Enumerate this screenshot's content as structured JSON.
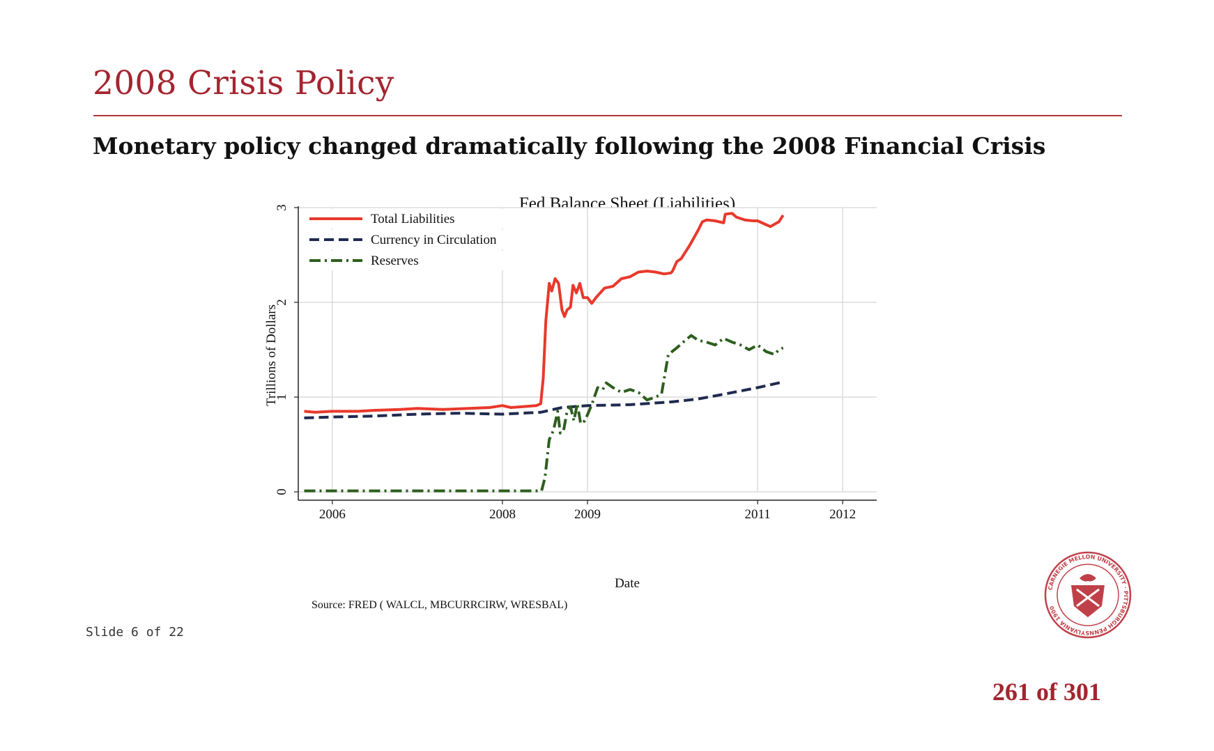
{
  "slide": {
    "title": "2008 Crisis Policy",
    "subtitle": "Monetary policy changed dramatically following the 2008 Financial Crisis",
    "counter": "Slide 6 of 22",
    "page_count": "261 of 301",
    "seal_text": "CARNEGIE MELLON UNIVERSITY · PITTSBURGH PENNSYLVANIA 1900",
    "accent_color": "#a3252f"
  },
  "chart_data": {
    "type": "line",
    "title": "Fed Balance Sheet (Liabilities)",
    "xlabel": "Date",
    "ylabel": "Trillions of Dollars",
    "source": "Source: FRED ( WALCL, MBCURRCIRW, WRESBAL)",
    "x_ticks": [
      {
        "value": 2006.0,
        "label": "2006"
      },
      {
        "value": 2008.0,
        "label": "2008"
      },
      {
        "value": 2009.0,
        "label": "2009"
      },
      {
        "value": 2011.0,
        "label": "2011"
      },
      {
        "value": 2012.0,
        "label": "2012"
      }
    ],
    "y_ticks": [
      0,
      1,
      2,
      3
    ],
    "xlim": [
      2005.6,
      2012.4
    ],
    "ylim": [
      0,
      3
    ],
    "grid": true,
    "legend_position": "top-left",
    "series": [
      {
        "name": "Total Liabilities",
        "color": "#e8392b",
        "style": "solid",
        "points": [
          [
            2005.67,
            0.85
          ],
          [
            2005.8,
            0.84
          ],
          [
            2006.0,
            0.85
          ],
          [
            2006.3,
            0.85
          ],
          [
            2006.5,
            0.86
          ],
          [
            2006.8,
            0.87
          ],
          [
            2007.0,
            0.88
          ],
          [
            2007.3,
            0.87
          ],
          [
            2007.6,
            0.88
          ],
          [
            2007.85,
            0.89
          ],
          [
            2008.0,
            0.91
          ],
          [
            2008.1,
            0.89
          ],
          [
            2008.25,
            0.9
          ],
          [
            2008.4,
            0.91
          ],
          [
            2008.45,
            0.93
          ],
          [
            2008.48,
            1.2
          ],
          [
            2008.51,
            1.8
          ],
          [
            2008.55,
            2.2
          ],
          [
            2008.58,
            2.12
          ],
          [
            2008.62,
            2.25
          ],
          [
            2008.66,
            2.2
          ],
          [
            2008.7,
            1.92
          ],
          [
            2008.73,
            1.85
          ],
          [
            2008.76,
            1.92
          ],
          [
            2008.8,
            1.95
          ],
          [
            2008.83,
            2.18
          ],
          [
            2008.87,
            2.1
          ],
          [
            2008.91,
            2.2
          ],
          [
            2008.95,
            2.05
          ],
          [
            2009.0,
            2.05
          ],
          [
            2009.05,
            1.99
          ],
          [
            2009.1,
            2.05
          ],
          [
            2009.2,
            2.15
          ],
          [
            2009.3,
            2.17
          ],
          [
            2009.4,
            2.25
          ],
          [
            2009.5,
            2.27
          ],
          [
            2009.6,
            2.32
          ],
          [
            2009.7,
            2.33
          ],
          [
            2009.8,
            2.32
          ],
          [
            2009.9,
            2.3
          ],
          [
            2009.98,
            2.31
          ],
          [
            2010.0,
            2.33
          ],
          [
            2010.05,
            2.43
          ],
          [
            2010.1,
            2.46
          ],
          [
            2010.2,
            2.6
          ],
          [
            2010.3,
            2.76
          ],
          [
            2010.35,
            2.85
          ],
          [
            2010.4,
            2.87
          ],
          [
            2010.5,
            2.86
          ],
          [
            2010.6,
            2.84
          ],
          [
            2010.62,
            2.93
          ],
          [
            2010.7,
            2.94
          ],
          [
            2010.75,
            2.9
          ],
          [
            2010.85,
            2.87
          ],
          [
            2010.95,
            2.86
          ],
          [
            2011.0,
            2.86
          ],
          [
            2011.1,
            2.82
          ],
          [
            2011.15,
            2.8
          ],
          [
            2011.25,
            2.85
          ],
          [
            2011.3,
            2.92
          ]
        ]
      },
      {
        "name": "Currency in Circulation",
        "color": "#1f2a4f",
        "style": "dash",
        "points": [
          [
            2005.67,
            0.78
          ],
          [
            2006.0,
            0.79
          ],
          [
            2006.5,
            0.8
          ],
          [
            2007.0,
            0.82
          ],
          [
            2007.5,
            0.83
          ],
          [
            2008.0,
            0.82
          ],
          [
            2008.45,
            0.84
          ],
          [
            2008.7,
            0.89
          ],
          [
            2009.0,
            0.91
          ],
          [
            2009.5,
            0.92
          ],
          [
            2010.0,
            0.95
          ],
          [
            2010.3,
            0.98
          ],
          [
            2010.6,
            1.03
          ],
          [
            2011.0,
            1.1
          ],
          [
            2011.3,
            1.16
          ]
        ]
      },
      {
        "name": "Reserves",
        "color": "#2e5e1e",
        "style": "dashdot",
        "points": [
          [
            2005.67,
            0.01
          ],
          [
            2006.0,
            0.01
          ],
          [
            2007.0,
            0.01
          ],
          [
            2008.0,
            0.01
          ],
          [
            2008.46,
            0.01
          ],
          [
            2008.5,
            0.15
          ],
          [
            2008.55,
            0.55
          ],
          [
            2008.6,
            0.65
          ],
          [
            2008.65,
            0.85
          ],
          [
            2008.68,
            0.62
          ],
          [
            2008.72,
            0.65
          ],
          [
            2008.76,
            0.85
          ],
          [
            2008.8,
            0.9
          ],
          [
            2008.84,
            0.75
          ],
          [
            2008.88,
            0.93
          ],
          [
            2008.92,
            0.72
          ],
          [
            2008.97,
            0.75
          ],
          [
            2009.05,
            0.92
          ],
          [
            2009.12,
            1.1
          ],
          [
            2009.18,
            1.08
          ],
          [
            2009.22,
            1.15
          ],
          [
            2009.3,
            1.1
          ],
          [
            2009.4,
            1.05
          ],
          [
            2009.5,
            1.08
          ],
          [
            2009.6,
            1.05
          ],
          [
            2009.7,
            0.97
          ],
          [
            2009.8,
            1.0
          ],
          [
            2009.87,
            1.03
          ],
          [
            2009.95,
            1.45
          ],
          [
            2010.05,
            1.52
          ],
          [
            2010.15,
            1.6
          ],
          [
            2010.22,
            1.65
          ],
          [
            2010.3,
            1.6
          ],
          [
            2010.4,
            1.58
          ],
          [
            2010.5,
            1.55
          ],
          [
            2010.6,
            1.62
          ],
          [
            2010.7,
            1.58
          ],
          [
            2010.8,
            1.55
          ],
          [
            2010.9,
            1.5
          ],
          [
            2011.0,
            1.55
          ],
          [
            2011.1,
            1.48
          ],
          [
            2011.2,
            1.45
          ],
          [
            2011.25,
            1.5
          ],
          [
            2011.3,
            1.52
          ]
        ]
      }
    ]
  }
}
